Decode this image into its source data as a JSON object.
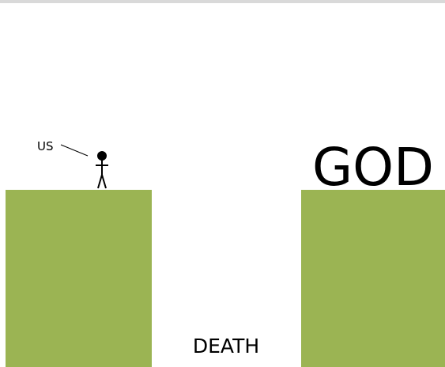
{
  "labels": {
    "us": "US",
    "god": "GOD",
    "death": "DEATH"
  }
}
